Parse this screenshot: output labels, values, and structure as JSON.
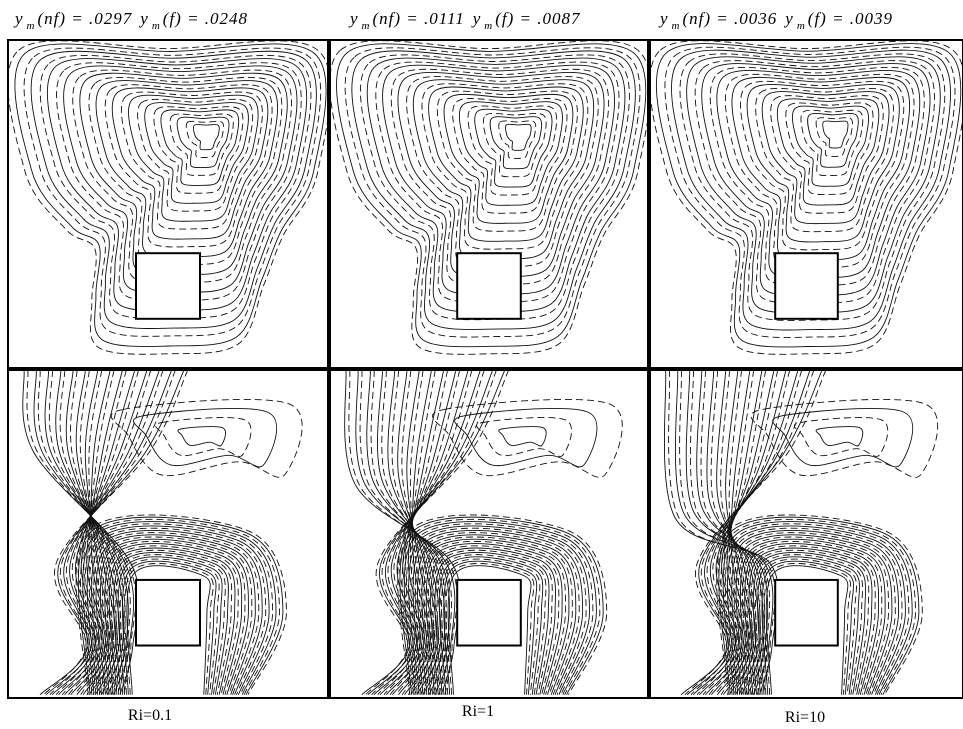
{
  "columns": [
    {
      "header": [
        {
          "symbol": "y",
          "subscript": "m",
          "text": "(nf) = .0297"
        },
        {
          "symbol": "y",
          "subscript": "m",
          "text": "(f) = .0248"
        }
      ],
      "label": "Ri=0.1"
    },
    {
      "header": [
        {
          "symbol": "y",
          "subscript": "m",
          "text": "(nf) = .0111"
        },
        {
          "symbol": "y",
          "subscript": "m",
          "text": "(f) = .0087"
        }
      ],
      "label": "Ri=1"
    },
    {
      "header": [
        {
          "symbol": "y",
          "subscript": "m",
          "text": "(nf) = .0036"
        },
        {
          "symbol": "y",
          "subscript": "m",
          "text": "(f) = .0039"
        }
      ],
      "label": "Ri=10"
    }
  ]
}
